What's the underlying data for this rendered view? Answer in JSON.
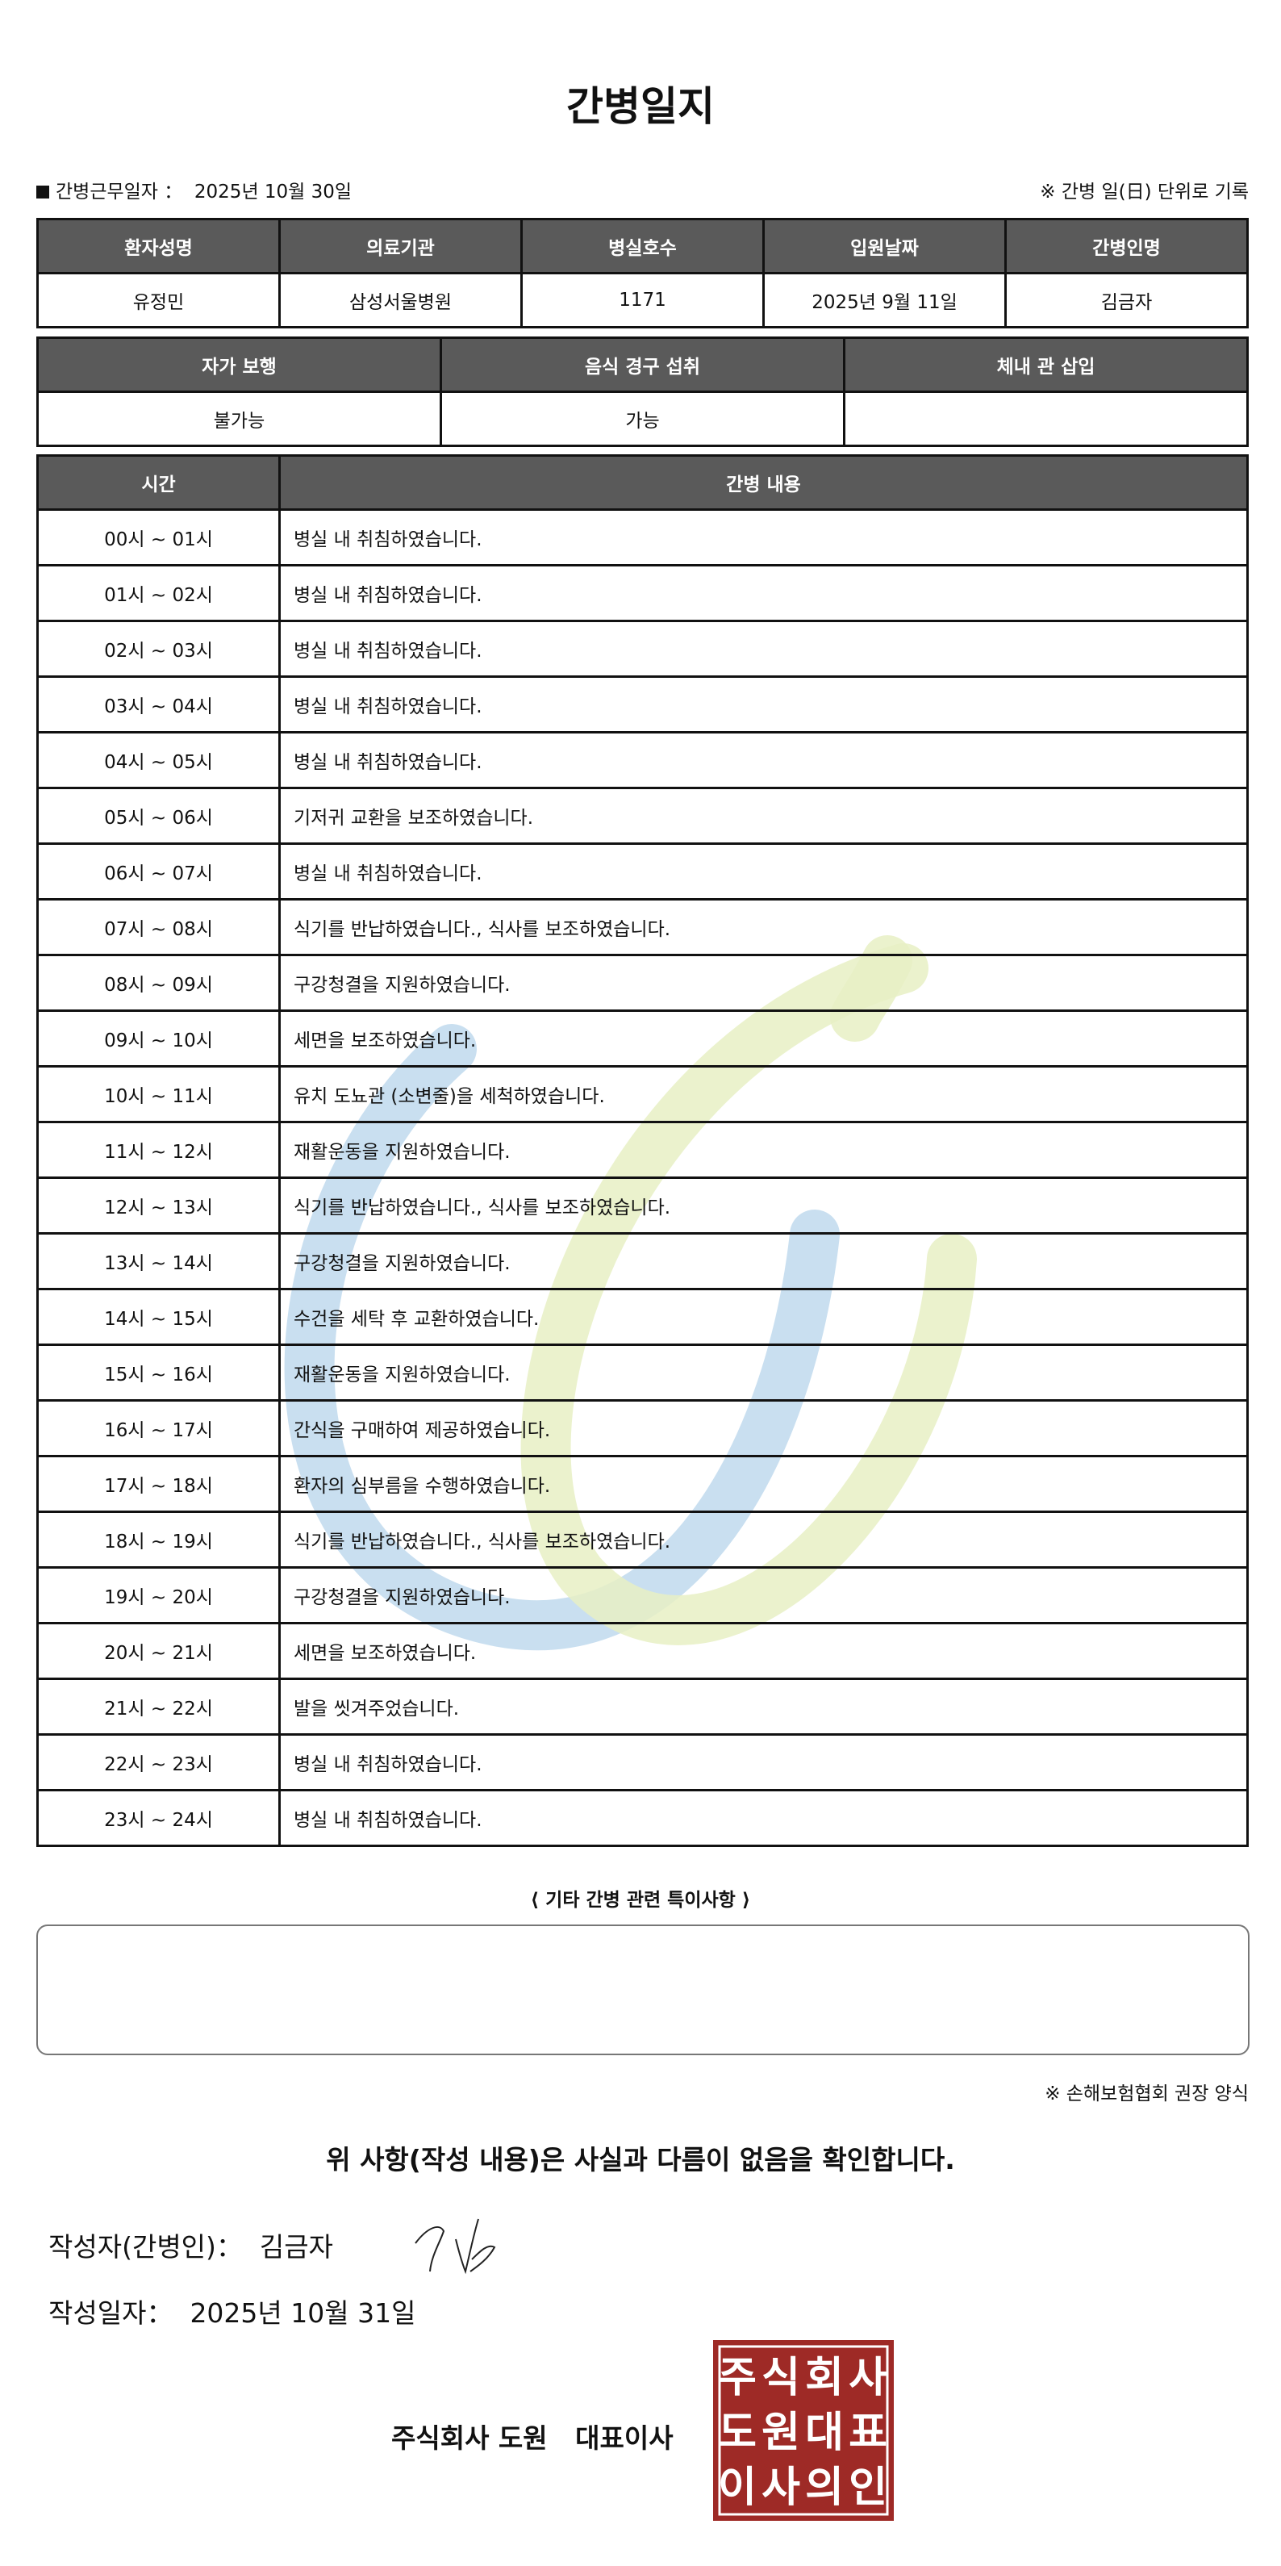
{
  "title": "간병일지",
  "work_date_label": "간병근무일자 ：",
  "work_date": "2025년 10월 30일",
  "record_note": "※ 간병 일(日) 단위로 기록",
  "patient_table": {
    "headers": [
      "환자성명",
      "의료기관",
      "병실호수",
      "입원날짜",
      "간병인명"
    ],
    "values": [
      "유정민",
      "삼성서울병원",
      "1171",
      "2025년 9월 11일",
      "김금자"
    ]
  },
  "status_table": {
    "headers": [
      "자가 보행",
      "음식 경구 섭취",
      "체내 관 삽입"
    ],
    "values": [
      "불가능",
      "가능",
      ""
    ]
  },
  "care_table": {
    "headers": [
      "시간",
      "간병 내용"
    ],
    "rows": [
      [
        "00시 ~ 01시",
        "병실 내 취침하였습니다."
      ],
      [
        "01시 ~ 02시",
        "병실 내 취침하였습니다."
      ],
      [
        "02시 ~ 03시",
        "병실 내 취침하였습니다."
      ],
      [
        "03시 ~ 04시",
        "병실 내 취침하였습니다."
      ],
      [
        "04시 ~ 05시",
        "병실 내 취침하였습니다."
      ],
      [
        "05시 ~ 06시",
        "기저귀 교환을 보조하였습니다."
      ],
      [
        "06시 ~ 07시",
        "병실 내 취침하였습니다."
      ],
      [
        "07시 ~ 08시",
        "식기를 반납하였습니다., 식사를 보조하였습니다."
      ],
      [
        "08시 ~ 09시",
        "구강청결을 지원하였습니다."
      ],
      [
        "09시 ~ 10시",
        "세면을 보조하였습니다."
      ],
      [
        "10시 ~ 11시",
        "유치 도뇨관 (소변줄)을 세척하였습니다."
      ],
      [
        "11시 ~ 12시",
        "재활운동을 지원하였습니다."
      ],
      [
        "12시 ~ 13시",
        "식기를 반납하였습니다., 식사를 보조하였습니다."
      ],
      [
        "13시 ~ 14시",
        "구강청결을 지원하였습니다."
      ],
      [
        "14시 ~ 15시",
        "수건을 세탁 후 교환하였습니다."
      ],
      [
        "15시 ~ 16시",
        "재활운동을 지원하였습니다."
      ],
      [
        "16시 ~ 17시",
        "간식을 구매하여 제공하였습니다."
      ],
      [
        "17시 ~ 18시",
        "환자의 심부름을 수행하였습니다."
      ],
      [
        "18시 ~ 19시",
        "식기를 반납하였습니다., 식사를 보조하였습니다."
      ],
      [
        "19시 ~ 20시",
        "구강청결을 지원하였습니다."
      ],
      [
        "20시 ~ 21시",
        "세면을 보조하였습니다."
      ],
      [
        "21시 ~ 22시",
        "발을 씻겨주었습니다."
      ],
      [
        "22시 ~ 23시",
        "병실 내 취침하였습니다."
      ],
      [
        "23시 ~ 24시",
        "병실 내 취침하였습니다."
      ]
    ]
  },
  "special_notes_label": "⟨ 기타 간병 관련 특이사항 ⟩",
  "special_notes": "",
  "form_note": "※ 손해보험협회 권장 양식",
  "confirmation": "위 사항(작성 내용)은 사실과 다름이 없음을 확인합니다.",
  "author_label": "작성자(간병인)：",
  "author": "김금자",
  "written_date_label": "작성일자：",
  "written_date": "2025년 10월 31일",
  "company": "주식회사 도원   대표이사",
  "seal_text": "주식회사도원대표이사의인",
  "colors": {
    "header_bg": "#5a5a5a",
    "seal": "#9e2a26",
    "watermark_blue": "#bcd7ec",
    "watermark_green": "#e8f0c4"
  }
}
